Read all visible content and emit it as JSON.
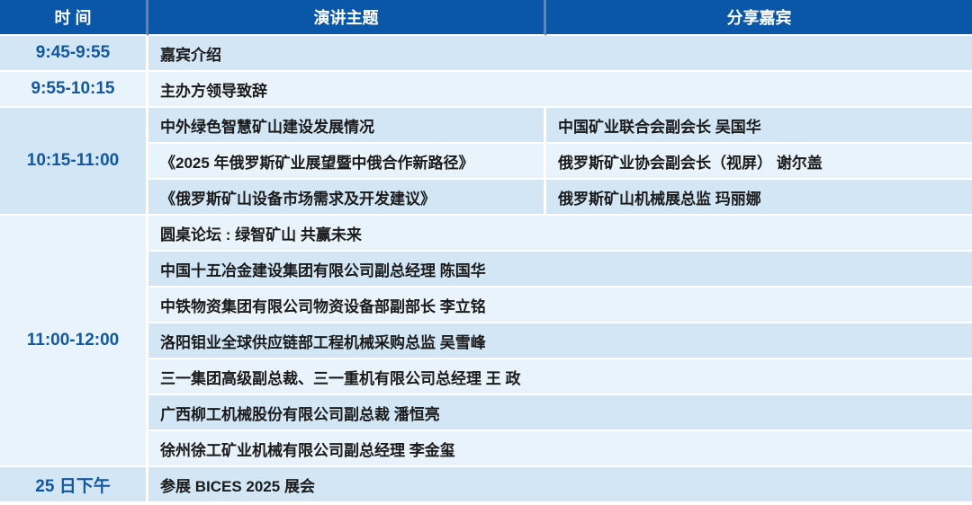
{
  "colors": {
    "header_bg": "#0a56a8",
    "header_text": "#ffffff",
    "header_divider": "#5a86bb",
    "row_dark": "#d2e6f5",
    "row_light": "#e9f3fb",
    "time_text": "#12579f",
    "body_text": "#1b1b1b",
    "separator": "#ffffff"
  },
  "header": {
    "time": "时 间",
    "topic": "演讲主题",
    "guest": "分享嘉宾"
  },
  "schedule": [
    {
      "time": "9:45-9:55",
      "rows": [
        {
          "topic": "嘉宾介绍"
        }
      ]
    },
    {
      "time": "9:55-10:15",
      "rows": [
        {
          "topic": "主办方领导致辞"
        }
      ]
    },
    {
      "time": "10:15-11:00",
      "rows": [
        {
          "topic": "中外绿色智慧矿山建设发展情况",
          "guest": "中国矿业联合会副会长 吴国华"
        },
        {
          "topic": "《2025 年俄罗斯矿业展望暨中俄合作新路径》",
          "guest": "俄罗斯矿业协会副会长（视屏） 谢尔盖"
        },
        {
          "topic": "《俄罗斯矿山设备市场需求及开发建议》",
          "guest": "俄罗斯矿山机械展总监 玛丽娜"
        }
      ]
    },
    {
      "time": "11:00-12:00",
      "rows": [
        {
          "topic": "圆桌论坛 : 绿智矿山 共赢未来"
        },
        {
          "topic": "中国十五冶金建设集团有限公司副总经理 陈国华"
        },
        {
          "topic": "中铁物资集团有限公司物资设备部副部长 李立铭"
        },
        {
          "topic": "洛阳钼业全球供应链部工程机械采购总监 吴雪峰"
        },
        {
          "topic": "三一集团高级副总裁、三一重机有限公司总经理 王  政"
        },
        {
          "topic": "广西柳工机械股份有限公司副总裁 潘恒亮"
        },
        {
          "topic": "徐州徐工矿业机械有限公司副总经理 李金玺"
        }
      ]
    },
    {
      "time": "25 日下午",
      "rows": [
        {
          "topic": "参展 BICES 2025 展会"
        }
      ]
    }
  ]
}
